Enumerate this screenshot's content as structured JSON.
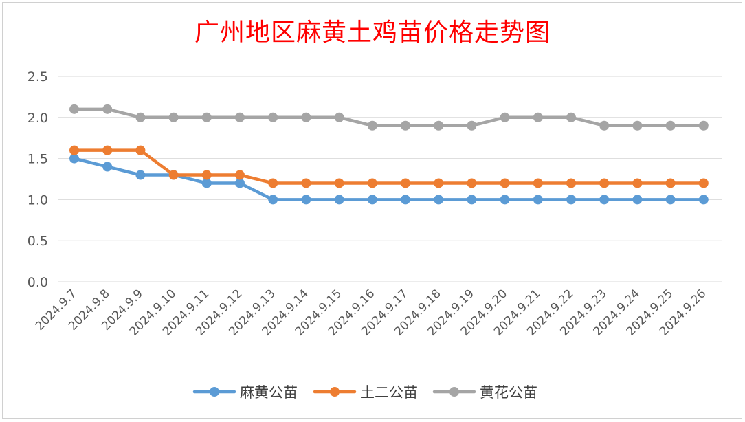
{
  "chart_data": {
    "type": "line",
    "title": "广州地区麻黄土鸡苗价格走势图",
    "xlabel": "",
    "ylabel": "",
    "ylim": [
      0,
      2.5
    ],
    "yticks": [
      "0.0",
      "0.5",
      "1.0",
      "1.5",
      "2.0",
      "2.5"
    ],
    "grid": true,
    "legend": "bottom",
    "categories": [
      "2024.9.7",
      "2024.9.8",
      "2024.9.9",
      "2024.9.10",
      "2024.9.11",
      "2024.9.12",
      "2024.9.13",
      "2024.9.14",
      "2024.9.15",
      "2024.9.16",
      "2024.9.17",
      "2024.9.18",
      "2024.9.19",
      "2024.9.20",
      "2024.9.21",
      "2024.9.22",
      "2024.9.23",
      "2024.9.24",
      "2024.9.25",
      "2024.9.26"
    ],
    "series": [
      {
        "name": "麻黄公苗",
        "color": "#5b9bd5",
        "values": [
          1.5,
          1.4,
          1.3,
          1.3,
          1.2,
          1.2,
          1.0,
          1.0,
          1.0,
          1.0,
          1.0,
          1.0,
          1.0,
          1.0,
          1.0,
          1.0,
          1.0,
          1.0,
          1.0,
          1.0
        ]
      },
      {
        "name": "土二公苗",
        "color": "#ed7d31",
        "values": [
          1.6,
          1.6,
          1.6,
          1.3,
          1.3,
          1.3,
          1.2,
          1.2,
          1.2,
          1.2,
          1.2,
          1.2,
          1.2,
          1.2,
          1.2,
          1.2,
          1.2,
          1.2,
          1.2,
          1.2
        ]
      },
      {
        "name": "黄花公苗",
        "color": "#a5a5a5",
        "values": [
          2.1,
          2.1,
          2.0,
          2.0,
          2.0,
          2.0,
          2.0,
          2.0,
          2.0,
          1.9,
          1.9,
          1.9,
          1.9,
          2.0,
          2.0,
          2.0,
          1.9,
          1.9,
          1.9,
          1.9
        ]
      }
    ]
  },
  "colors": {
    "title": "#ff0000",
    "grid": "#d9d9d9",
    "axis_text": "#595959"
  }
}
